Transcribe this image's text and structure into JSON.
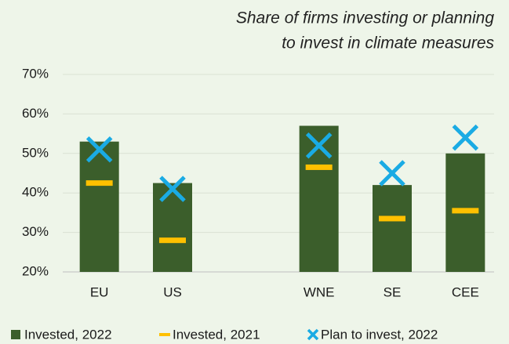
{
  "chart_data": {
    "type": "bar",
    "title": [
      "Share of firms investing or planning",
      "to invest in climate measures"
    ],
    "categories": [
      "EU",
      "US",
      null,
      "WNE",
      "SE",
      "CEE"
    ],
    "series": [
      {
        "name": "Invested, 2022",
        "color": "#3b5e2b",
        "marker": "bar",
        "values": [
          53,
          42.5,
          null,
          57,
          42,
          50
        ]
      },
      {
        "name": "Invested, 2021",
        "color": "#ffc000",
        "marker": "dash",
        "values": [
          42.5,
          28,
          null,
          46.5,
          33.5,
          35.5
        ]
      },
      {
        "name": "Plan to invest, 2022",
        "color": "#1aabe4",
        "marker": "x",
        "values": [
          51,
          41,
          null,
          52,
          45,
          54
        ]
      }
    ],
    "ylim": [
      20,
      70
    ],
    "yticks": [
      {
        "value": 20,
        "label": "20%"
      },
      {
        "value": 30,
        "label": "30%"
      },
      {
        "value": 40,
        "label": "40%"
      },
      {
        "value": 50,
        "label": "50%"
      },
      {
        "value": 60,
        "label": "60%"
      },
      {
        "value": 70,
        "label": "70%"
      }
    ],
    "grid": true,
    "legend": "bottom"
  }
}
